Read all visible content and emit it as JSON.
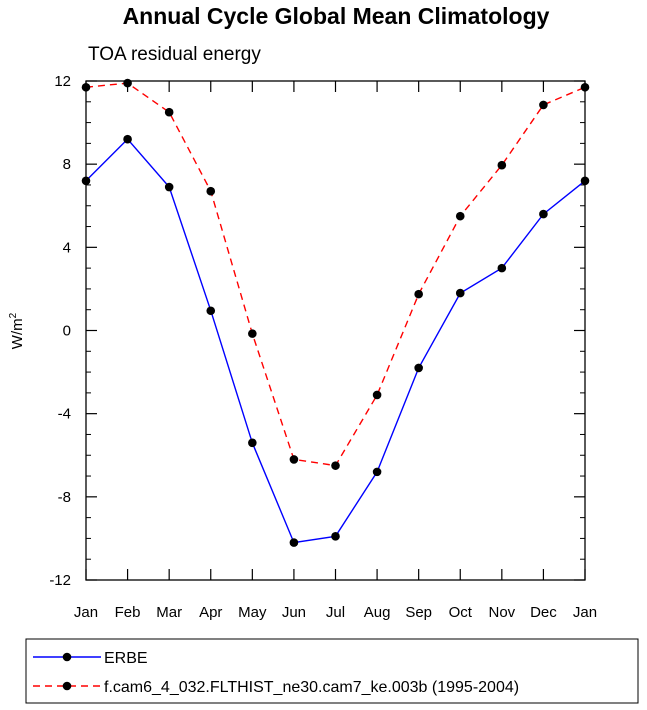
{
  "chart_data": {
    "type": "line",
    "title": "Annual Cycle Global Mean Climatology",
    "subtitle": "TOA residual energy",
    "xlabel": "",
    "ylabel": "W/m",
    "ylabel_superscript": "2",
    "ylim": [
      -12,
      12
    ],
    "yticks": [
      -12,
      -8,
      -4,
      0,
      4,
      8,
      12
    ],
    "ytick_labels": [
      "-12",
      "-8",
      "-4",
      "0",
      "4",
      "8",
      "12"
    ],
    "categories": [
      "Jan",
      "Feb",
      "Mar",
      "Apr",
      "May",
      "Jun",
      "Jul",
      "Aug",
      "Sep",
      "Oct",
      "Nov",
      "Dec",
      "Jan"
    ],
    "series": [
      {
        "name": "ERBE",
        "color": "#0000ff",
        "dashed": false,
        "values": [
          7.2,
          9.2,
          6.9,
          0.95,
          -5.4,
          -10.2,
          -9.9,
          -6.8,
          -1.8,
          1.8,
          3.0,
          5.6,
          7.2
        ]
      },
      {
        "name": "f.cam6_4_032.FLTHIST_ne30.cam7_ke.003b (1995-2004)",
        "color": "#ff0000",
        "dashed": true,
        "values": [
          11.7,
          11.9,
          10.5,
          6.7,
          -0.15,
          -6.2,
          -6.5,
          -3.1,
          1.75,
          5.5,
          7.95,
          10.85,
          11.7
        ]
      }
    ],
    "grid": false,
    "legend_position": "bottom"
  }
}
